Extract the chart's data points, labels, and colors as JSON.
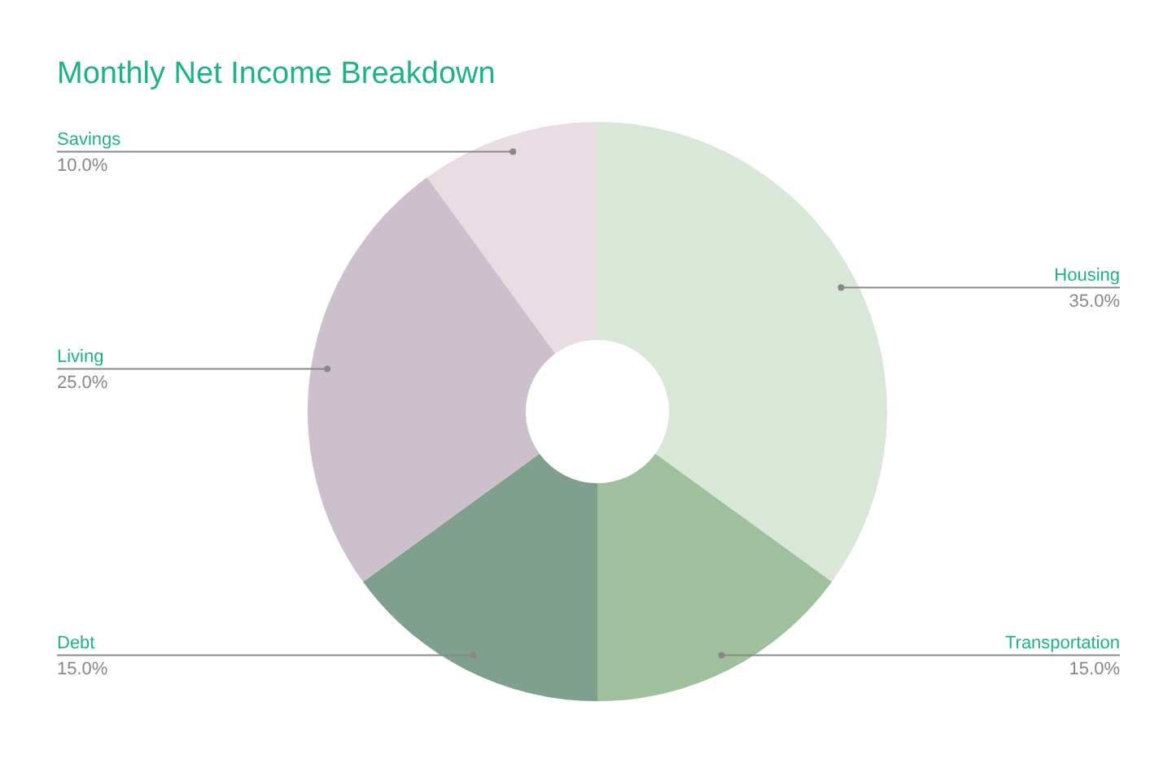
{
  "chart_data": {
    "type": "donut",
    "title": "Monthly Net Income Breakdown",
    "categories": [
      "Housing",
      "Transportation",
      "Debt",
      "Living",
      "Savings"
    ],
    "values": [
      35,
      15,
      15,
      25,
      10
    ],
    "value_labels": [
      "35.0%",
      "15.0%",
      "15.0%",
      "25.0%",
      "10.0%"
    ],
    "colors": [
      "#d9e7d8",
      "#a0c09d",
      "#7ea08c",
      "#cbc0cb",
      "#e9dde3"
    ],
    "legend": false
  }
}
